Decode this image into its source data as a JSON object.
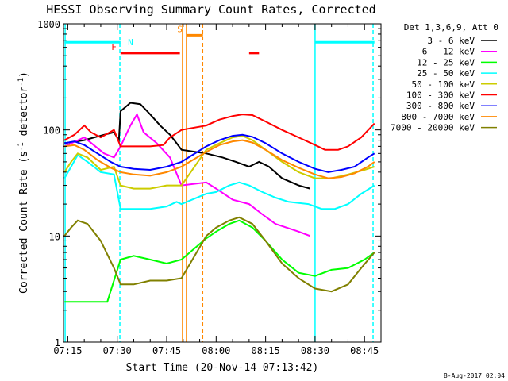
{
  "chart_data": {
    "type": "line",
    "title": "HESSI Observing Summary Count Rates, Corrected",
    "xlabel": "Start Time (20-Nov-14 07:13:42)",
    "ylabel": "Corrected Count Rate (s-1 detector-1)",
    "ylabel_parts": {
      "base": "Corrected Count Rate (s",
      "sup1": "-1",
      "mid": " detector",
      "sup2": "-1",
      "end": ")"
    },
    "yscale": "log",
    "ylim": [
      1,
      1000
    ],
    "xlim": [
      433.7,
      530
    ],
    "x_unit": "minutes since 00:00",
    "x_ticks": [
      {
        "v": 435,
        "label": "07:15"
      },
      {
        "v": 450,
        "label": "07:30"
      },
      {
        "v": 465,
        "label": "07:45"
      },
      {
        "v": 480,
        "label": "08:00"
      },
      {
        "v": 495,
        "label": "08:15"
      },
      {
        "v": 510,
        "label": "08:30"
      },
      {
        "v": 525,
        "label": "08:45"
      }
    ],
    "y_ticks": [
      {
        "v": 1,
        "label": "1"
      },
      {
        "v": 10,
        "label": "10"
      },
      {
        "v": 100,
        "label": "100"
      },
      {
        "v": 1000,
        "label": "1000"
      }
    ],
    "legend_title": "Det 1,3,6,9, Att 0",
    "legend_position": "right",
    "series": [
      {
        "name": "3 - 6 keV",
        "color": "#000000",
        "points": [
          [
            434,
            75
          ],
          [
            440,
            80
          ],
          [
            446,
            90
          ],
          [
            449,
            95
          ],
          [
            450.5,
            80
          ],
          [
            451,
            150
          ],
          [
            454,
            180
          ],
          [
            457,
            175
          ],
          [
            460,
            140
          ],
          [
            463,
            110
          ],
          [
            466,
            90
          ],
          [
            468,
            75
          ],
          [
            469.5,
            65
          ],
          [
            477,
            60
          ],
          [
            482,
            55
          ],
          [
            486,
            50
          ],
          [
            490,
            45
          ],
          [
            493,
            50
          ],
          [
            496,
            45
          ],
          [
            500,
            35
          ],
          [
            505,
            30
          ],
          [
            508.5,
            28
          ]
        ]
      },
      {
        "name": "6 - 12 keV",
        "color": "#ff00ff",
        "points": [
          [
            434,
            70
          ],
          [
            440,
            85
          ],
          [
            446,
            60
          ],
          [
            449,
            55
          ],
          [
            451,
            70
          ],
          [
            454,
            110
          ],
          [
            456,
            140
          ],
          [
            458,
            95
          ],
          [
            462,
            75
          ],
          [
            466,
            55
          ],
          [
            469.5,
            30
          ],
          [
            477,
            32
          ],
          [
            480,
            28
          ],
          [
            485,
            22
          ],
          [
            490,
            20
          ],
          [
            494,
            16
          ],
          [
            498,
            13
          ],
          [
            505,
            11
          ],
          [
            508.5,
            10
          ]
        ]
      },
      {
        "name": "12 - 25 keV",
        "color": "#00ff00",
        "points": [
          [
            434,
            2.4
          ],
          [
            440,
            2.4
          ],
          [
            447,
            2.4
          ],
          [
            451,
            6
          ],
          [
            455,
            6.5
          ],
          [
            460,
            6
          ],
          [
            465,
            5.5
          ],
          [
            469.5,
            6
          ],
          [
            477,
            9.5
          ],
          [
            480,
            11
          ],
          [
            484,
            13
          ],
          [
            487,
            14
          ],
          [
            491,
            12
          ],
          [
            495,
            9
          ],
          [
            500,
            6
          ],
          [
            505,
            4.5
          ],
          [
            510,
            4.2
          ],
          [
            515,
            4.8
          ],
          [
            520,
            5
          ],
          [
            525,
            6
          ],
          [
            528,
            7
          ]
        ]
      },
      {
        "name": "25 - 50 keV",
        "color": "#00ffff",
        "points": [
          [
            434,
            35
          ],
          [
            436,
            45
          ],
          [
            438,
            58
          ],
          [
            441,
            50
          ],
          [
            445,
            40
          ],
          [
            449,
            38
          ],
          [
            451,
            18
          ],
          [
            455,
            18
          ],
          [
            460,
            18
          ],
          [
            465,
            19
          ],
          [
            468,
            21
          ],
          [
            469.5,
            20
          ],
          [
            477,
            25
          ],
          [
            480,
            26
          ],
          [
            484,
            30
          ],
          [
            487,
            32
          ],
          [
            490,
            30
          ],
          [
            494,
            26
          ],
          [
            498,
            23
          ],
          [
            502,
            21
          ],
          [
            508,
            20
          ],
          [
            512,
            18
          ],
          [
            516,
            18
          ],
          [
            520,
            20
          ],
          [
            524,
            25
          ],
          [
            528,
            30
          ]
        ]
      },
      {
        "name": "50 - 100 keV",
        "color": "#cccc00",
        "points": [
          [
            434,
            40
          ],
          [
            436,
            50
          ],
          [
            438,
            60
          ],
          [
            441,
            55
          ],
          [
            445,
            42
          ],
          [
            449,
            45
          ],
          [
            451,
            30
          ],
          [
            455,
            28
          ],
          [
            460,
            28
          ],
          [
            465,
            30
          ],
          [
            469.5,
            30
          ],
          [
            477,
            65
          ],
          [
            481,
            75
          ],
          [
            485,
            85
          ],
          [
            488,
            88
          ],
          [
            491,
            80
          ],
          [
            495,
            65
          ],
          [
            500,
            50
          ],
          [
            505,
            40
          ],
          [
            510,
            35
          ],
          [
            515,
            35
          ],
          [
            520,
            38
          ],
          [
            525,
            42
          ],
          [
            528,
            45
          ]
        ]
      },
      {
        "name": "100 - 300 keV",
        "color": "#ff0000",
        "points": [
          [
            434,
            80
          ],
          [
            437,
            90
          ],
          [
            440,
            110
          ],
          [
            442,
            95
          ],
          [
            445,
            85
          ],
          [
            449,
            100
          ],
          [
            451,
            70
          ],
          [
            455,
            70
          ],
          [
            460,
            70
          ],
          [
            464,
            72
          ],
          [
            466,
            85
          ],
          [
            469.5,
            100
          ],
          [
            477,
            110
          ],
          [
            481,
            125
          ],
          [
            485,
            135
          ],
          [
            488,
            140
          ],
          [
            491,
            138
          ],
          [
            495,
            120
          ],
          [
            500,
            100
          ],
          [
            505,
            85
          ],
          [
            510,
            72
          ],
          [
            513,
            65
          ],
          [
            517,
            65
          ],
          [
            520,
            70
          ],
          [
            524,
            85
          ],
          [
            528,
            115
          ]
        ]
      },
      {
        "name": "300 - 800 keV",
        "color": "#0000ff",
        "points": [
          [
            434,
            75
          ],
          [
            437,
            78
          ],
          [
            440,
            72
          ],
          [
            444,
            60
          ],
          [
            448,
            50
          ],
          [
            451,
            45
          ],
          [
            455,
            43
          ],
          [
            460,
            42
          ],
          [
            465,
            45
          ],
          [
            469.5,
            50
          ],
          [
            477,
            70
          ],
          [
            481,
            80
          ],
          [
            485,
            88
          ],
          [
            488,
            90
          ],
          [
            491,
            86
          ],
          [
            495,
            75
          ],
          [
            500,
            60
          ],
          [
            505,
            50
          ],
          [
            510,
            43
          ],
          [
            514,
            40
          ],
          [
            518,
            42
          ],
          [
            522,
            45
          ],
          [
            526,
            55
          ],
          [
            528,
            60
          ]
        ]
      },
      {
        "name": "800 - 7000 keV",
        "color": "#ff8800",
        "points": [
          [
            434,
            70
          ],
          [
            437,
            72
          ],
          [
            440,
            65
          ],
          [
            444,
            52
          ],
          [
            448,
            44
          ],
          [
            451,
            40
          ],
          [
            455,
            38
          ],
          [
            460,
            37
          ],
          [
            465,
            40
          ],
          [
            469.5,
            45
          ],
          [
            477,
            62
          ],
          [
            481,
            72
          ],
          [
            485,
            78
          ],
          [
            488,
            80
          ],
          [
            491,
            76
          ],
          [
            495,
            65
          ],
          [
            500,
            52
          ],
          [
            505,
            44
          ],
          [
            510,
            38
          ],
          [
            514,
            35
          ],
          [
            518,
            36
          ],
          [
            522,
            39
          ],
          [
            526,
            45
          ],
          [
            528,
            50
          ]
        ]
      },
      {
        "name": "7000 - 20000 keV",
        "color": "#808000",
        "points": [
          [
            434,
            10
          ],
          [
            436,
            12
          ],
          [
            438,
            14
          ],
          [
            441,
            13
          ],
          [
            445,
            9
          ],
          [
            449,
            5
          ],
          [
            451,
            3.5
          ],
          [
            455,
            3.5
          ],
          [
            460,
            3.8
          ],
          [
            465,
            3.8
          ],
          [
            469.5,
            4
          ],
          [
            477,
            10
          ],
          [
            480,
            12
          ],
          [
            484,
            14
          ],
          [
            487,
            15
          ],
          [
            491,
            13
          ],
          [
            495,
            9
          ],
          [
            500,
            5.5
          ],
          [
            505,
            4
          ],
          [
            510,
            3.2
          ],
          [
            515,
            3
          ],
          [
            520,
            3.5
          ],
          [
            524,
            5
          ],
          [
            528,
            7
          ]
        ]
      }
    ]
  },
  "overlays": {
    "spans": [
      {
        "label": "",
        "color": "#00ffff",
        "x0": 434,
        "x1": 451,
        "y": 670
      },
      {
        "label": "N",
        "color": "#00ffff",
        "x0": 452.5,
        "x1": 452.5,
        "y": 670
      },
      {
        "label": "F",
        "color": "#ff0000",
        "x0": 451,
        "x1": 469,
        "y": 530
      },
      {
        "label": "S",
        "color": "#ff8800",
        "x0": 471,
        "x1": 476,
        "y": 780
      },
      {
        "label": "",
        "color": "#ff0000",
        "x0": 490,
        "x1": 493,
        "y": 530
      },
      {
        "label": "",
        "color": "#00ffff",
        "x0": 510,
        "x1": 528,
        "y": 670
      }
    ],
    "vlines": [
      {
        "x": 434.2,
        "color": "#00ffff",
        "style": "solid"
      },
      {
        "x": 450.8,
        "color": "#00ffff",
        "style": "dashed"
      },
      {
        "x": 469.8,
        "color": "#ff8800",
        "style": "solid"
      },
      {
        "x": 471,
        "color": "#ff8800",
        "style": "solid"
      },
      {
        "x": 475.9,
        "color": "#ff8800",
        "style": "dashed"
      },
      {
        "x": 510,
        "color": "#00ffff",
        "style": "solid"
      },
      {
        "x": 527.6,
        "color": "#00ffff",
        "style": "dashed"
      }
    ]
  },
  "timestamp": "8-Aug-2017 02:04"
}
